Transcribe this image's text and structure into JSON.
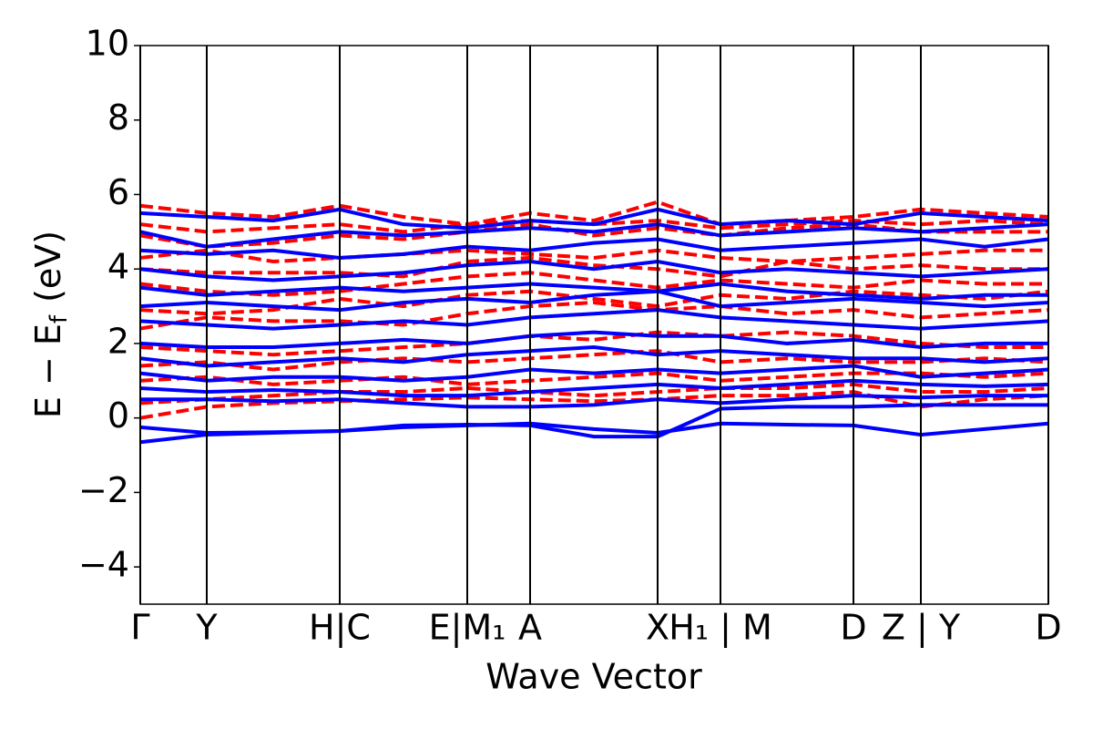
{
  "chart_data": {
    "type": "line",
    "xlabel": "Wave Vector",
    "ylabel": [
      "E − E",
      "f",
      "(eV)"
    ],
    "xlim": [
      0,
      9.97
    ],
    "ylim": [
      -5,
      10
    ],
    "yticks": [
      {
        "value": -4,
        "label": "−4"
      },
      {
        "value": -2,
        "label": "−2"
      },
      0,
      2,
      4,
      6,
      8,
      10
    ],
    "xticks": [
      {
        "value": 0,
        "label": "Γ"
      },
      {
        "value": 0.73,
        "label": "Y"
      },
      {
        "value": 2.19,
        "label": "H|C"
      },
      {
        "value": 3.59,
        "label": "E|M₁"
      },
      {
        "value": 4.28,
        "label": "A"
      },
      {
        "value": 5.68,
        "label": "X"
      },
      {
        "value": 6.37,
        "label": "H₁ | M"
      },
      {
        "value": 7.83,
        "label": "D"
      },
      {
        "value": 8.57,
        "label": "Z | Y"
      },
      {
        "value": 9.97,
        "label": "D"
      }
    ],
    "vlines": true,
    "x": [
      0,
      0.73,
      1.46,
      2.19,
      2.89,
      3.59,
      4.28,
      4.98,
      5.68,
      6.37,
      7.1,
      7.83,
      8.57,
      9.27,
      9.97
    ],
    "series": [
      {
        "color": "#ff0000",
        "linestyle": "--",
        "values": [
          0.0,
          0.3,
          0.4,
          0.45,
          0.5,
          0.55,
          0.5,
          0.45,
          0.5,
          0.6,
          0.6,
          0.7,
          0.3,
          0.5,
          0.6
        ]
      },
      {
        "color": "#ff0000",
        "linestyle": "--",
        "values": [
          0.4,
          0.5,
          0.6,
          0.7,
          0.7,
          0.8,
          0.7,
          0.6,
          0.7,
          0.8,
          0.8,
          0.9,
          0.7,
          0.7,
          0.8
        ]
      },
      {
        "color": "#ff0000",
        "linestyle": "--",
        "values": [
          1.0,
          1.1,
          0.9,
          1.0,
          1.1,
          0.9,
          1.0,
          1.1,
          1.2,
          1.0,
          1.1,
          1.2,
          1.2,
          1.1,
          1.2
        ]
      },
      {
        "color": "#ff0000",
        "linestyle": "--",
        "values": [
          1.4,
          1.5,
          1.3,
          1.5,
          1.6,
          1.5,
          1.6,
          1.7,
          1.8,
          1.5,
          1.6,
          1.5,
          1.5,
          1.6,
          1.5
        ]
      },
      {
        "color": "#ff0000",
        "linestyle": "--",
        "values": [
          1.9,
          1.8,
          1.7,
          1.8,
          1.9,
          2.0,
          2.2,
          2.1,
          2.3,
          2.2,
          2.3,
          2.2,
          2.0,
          1.9,
          1.9
        ]
      },
      {
        "color": "#ff0000",
        "linestyle": "--",
        "values": [
          2.4,
          2.7,
          2.6,
          2.6,
          2.5,
          2.8,
          3.0,
          3.1,
          2.9,
          3.0,
          2.8,
          2.9,
          2.7,
          2.8,
          2.9
        ]
      },
      {
        "color": "#ff0000",
        "linestyle": "--",
        "values": [
          2.9,
          2.8,
          2.9,
          3.2,
          3.0,
          3.3,
          3.4,
          3.2,
          3.0,
          3.3,
          3.2,
          3.4,
          3.3,
          3.2,
          3.4
        ]
      },
      {
        "color": "#ff0000",
        "linestyle": "--",
        "values": [
          3.6,
          3.4,
          3.3,
          3.4,
          3.6,
          3.8,
          3.9,
          3.7,
          3.5,
          3.7,
          3.6,
          3.5,
          3.7,
          3.6,
          3.6
        ]
      },
      {
        "color": "#ff0000",
        "linestyle": "--",
        "values": [
          4.0,
          3.9,
          3.9,
          3.9,
          3.8,
          4.2,
          4.3,
          4.1,
          4.0,
          3.8,
          4.2,
          4.0,
          4.1,
          4.0,
          4.0
        ]
      },
      {
        "color": "#ff0000",
        "linestyle": "--",
        "values": [
          4.3,
          4.5,
          4.2,
          4.3,
          4.4,
          4.5,
          4.4,
          4.3,
          4.5,
          4.3,
          4.2,
          4.3,
          4.4,
          4.5,
          4.5
        ]
      },
      {
        "color": "#ff0000",
        "linestyle": "--",
        "values": [
          4.9,
          4.6,
          4.7,
          4.9,
          4.8,
          5.0,
          5.2,
          4.9,
          5.1,
          4.9,
          5.1,
          5.2,
          5.0,
          5.0,
          5.0
        ]
      },
      {
        "color": "#ff0000",
        "linestyle": "--",
        "values": [
          5.2,
          5.0,
          5.1,
          5.2,
          5.0,
          5.2,
          5.3,
          5.2,
          5.3,
          5.1,
          5.2,
          5.3,
          5.2,
          5.3,
          5.2
        ]
      },
      {
        "color": "#ff0000",
        "linestyle": "--",
        "values": [
          5.7,
          5.5,
          5.4,
          5.7,
          5.4,
          5.2,
          5.5,
          5.3,
          5.8,
          5.2,
          5.3,
          5.4,
          5.6,
          5.5,
          5.4
        ]
      },
      {
        "color": "#0000ff",
        "linestyle": "-",
        "values": [
          -0.65,
          -0.45,
          -0.4,
          -0.35,
          -0.25,
          -0.2,
          -0.15,
          -0.3,
          -0.4,
          -0.15,
          -0.18,
          -0.2,
          -0.45,
          -0.3,
          -0.15
        ]
      },
      {
        "color": "#0000ff",
        "linestyle": "-",
        "values": [
          -0.25,
          -0.4,
          -0.38,
          -0.35,
          -0.2,
          -0.18,
          -0.2,
          -0.5,
          -0.5,
          0.25,
          0.3,
          0.3,
          0.35,
          0.35,
          0.35
        ]
      },
      {
        "color": "#0000ff",
        "linestyle": "-",
        "values": [
          0.5,
          0.5,
          0.45,
          0.5,
          0.4,
          0.3,
          0.3,
          0.35,
          0.5,
          0.4,
          0.5,
          0.6,
          0.55,
          0.6,
          0.6
        ]
      },
      {
        "color": "#0000ff",
        "linestyle": "-",
        "values": [
          0.8,
          0.7,
          0.75,
          0.7,
          0.6,
          0.6,
          0.7,
          0.8,
          0.9,
          0.8,
          0.9,
          1.0,
          0.9,
          0.85,
          0.9
        ]
      },
      {
        "color": "#0000ff",
        "linestyle": "-",
        "values": [
          1.2,
          1.0,
          1.1,
          1.1,
          1.0,
          1.1,
          1.3,
          1.2,
          1.3,
          1.2,
          1.3,
          1.4,
          1.1,
          1.2,
          1.3
        ]
      },
      {
        "color": "#0000ff",
        "linestyle": "-",
        "values": [
          1.6,
          1.4,
          1.5,
          1.6,
          1.5,
          1.7,
          1.8,
          1.9,
          1.7,
          1.8,
          1.7,
          1.6,
          1.6,
          1.5,
          1.6
        ]
      },
      {
        "color": "#0000ff",
        "linestyle": "-",
        "values": [
          2.0,
          1.9,
          1.9,
          2.0,
          2.1,
          2.0,
          2.2,
          2.3,
          2.2,
          2.2,
          2.0,
          2.1,
          1.9,
          2.0,
          2.0
        ]
      },
      {
        "color": "#0000ff",
        "linestyle": "-",
        "values": [
          2.6,
          2.5,
          2.4,
          2.5,
          2.6,
          2.5,
          2.7,
          2.8,
          2.9,
          2.7,
          2.6,
          2.5,
          2.4,
          2.5,
          2.6
        ]
      },
      {
        "color": "#0000ff",
        "linestyle": "-",
        "values": [
          3.0,
          3.1,
          3.0,
          2.9,
          3.1,
          3.2,
          3.1,
          3.3,
          3.4,
          3.0,
          3.1,
          3.2,
          3.1,
          3.0,
          3.1
        ]
      },
      {
        "color": "#0000ff",
        "linestyle": "-",
        "values": [
          3.5,
          3.3,
          3.4,
          3.5,
          3.4,
          3.5,
          3.6,
          3.5,
          3.4,
          3.6,
          3.4,
          3.3,
          3.2,
          3.3,
          3.3
        ]
      },
      {
        "color": "#0000ff",
        "linestyle": "-",
        "values": [
          4.0,
          3.8,
          3.7,
          3.8,
          3.9,
          4.1,
          4.2,
          4.0,
          4.2,
          3.9,
          4.0,
          3.9,
          3.8,
          3.9,
          4.0
        ]
      },
      {
        "color": "#0000ff",
        "linestyle": "-",
        "values": [
          4.5,
          4.4,
          4.5,
          4.3,
          4.4,
          4.6,
          4.5,
          4.7,
          4.8,
          4.5,
          4.6,
          4.7,
          4.8,
          4.6,
          4.8
        ]
      },
      {
        "color": "#0000ff",
        "linestyle": "-",
        "values": [
          5.0,
          4.6,
          4.8,
          5.0,
          4.9,
          5.0,
          5.1,
          5.0,
          5.2,
          4.9,
          5.0,
          5.1,
          5.0,
          5.1,
          5.2
        ]
      },
      {
        "color": "#0000ff",
        "linestyle": "-",
        "values": [
          5.5,
          5.4,
          5.3,
          5.6,
          5.2,
          5.1,
          5.3,
          5.2,
          5.6,
          5.2,
          5.3,
          5.2,
          5.5,
          5.4,
          5.3
        ]
      }
    ]
  }
}
